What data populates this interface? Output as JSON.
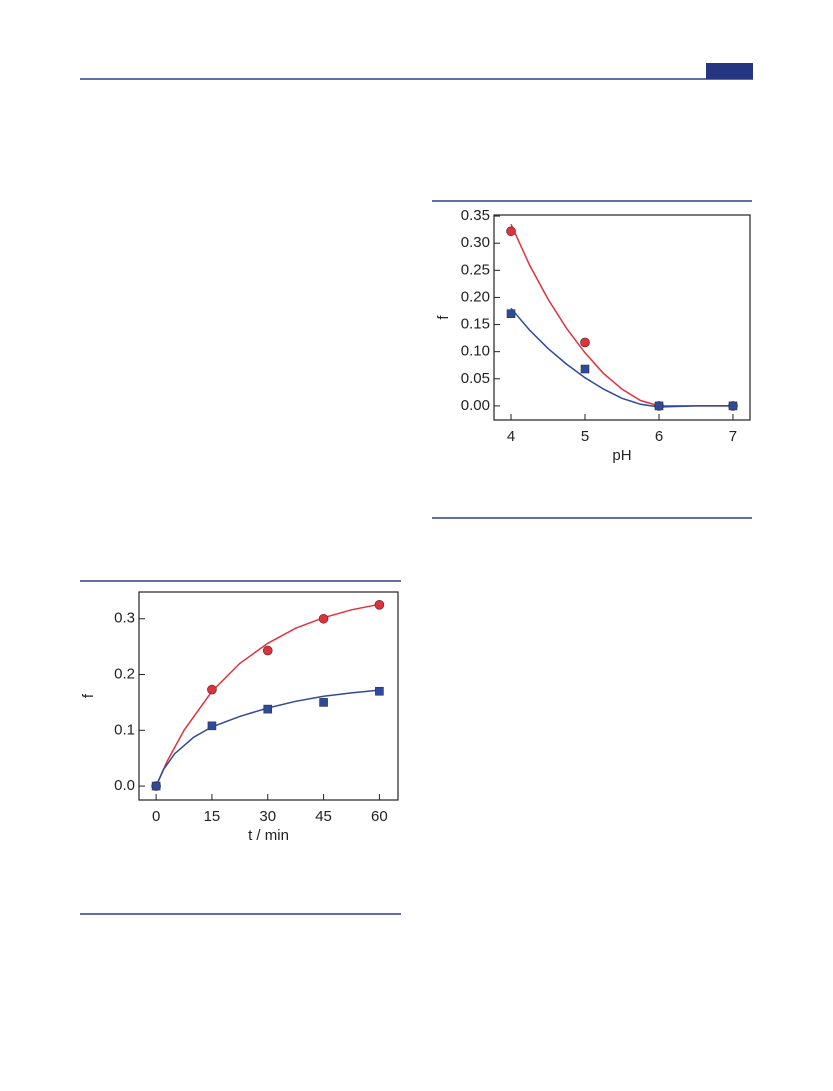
{
  "chart_data": [
    {
      "type": "scatter",
      "xlabel": "pH",
      "ylabel": "f",
      "x": [
        4,
        5,
        6,
        7
      ],
      "xlim": [
        3.77,
        7.23
      ],
      "ylim": [
        -0.026,
        0.352
      ],
      "xticks": [
        4,
        5,
        6,
        7
      ],
      "yticks": [
        {
          "value": 0,
          "label": "0.00"
        },
        {
          "value": 0.05,
          "label": "0.05"
        },
        {
          "value": 0.1,
          "label": "0.10"
        },
        {
          "value": 0.15,
          "label": "0.15"
        },
        {
          "value": 0.2,
          "label": "0.20"
        },
        {
          "value": 0.25,
          "label": "0.25"
        },
        {
          "value": 0.3,
          "label": "0.30"
        },
        {
          "value": 0.35,
          "label": "0.35"
        }
      ],
      "series": [
        {
          "color": "#e3313b",
          "marker": "circle",
          "values": [
            0.322,
            0.117,
            0,
            0
          ],
          "fit": {
            "x": [
              4,
              4.25,
              4.5,
              4.75,
              5,
              5.25,
              5.5,
              5.75,
              6,
              6.5,
              7
            ],
            "values": [
              0.335,
              0.26,
              0.197,
              0.143,
              0.098,
              0.06,
              0.031,
              0.01,
              0,
              0,
              0
            ]
          }
        },
        {
          "color": "#2e4a9b",
          "marker": "square",
          "values": [
            0.17,
            0.068,
            0,
            0
          ],
          "fit": {
            "x": [
              4,
              4.25,
              4.5,
              4.75,
              5,
              5.25,
              5.5,
              5.75,
              6,
              6.5,
              7
            ],
            "values": [
              0.18,
              0.14,
              0.106,
              0.077,
              0.052,
              0.031,
              0.014,
              0.003,
              -0.002,
              0,
              0
            ]
          }
        }
      ]
    },
    {
      "type": "scatter",
      "xlabel": "t / min",
      "ylabel": "f",
      "x": [
        0,
        15,
        30,
        45,
        60
      ],
      "xlim": [
        -4.6,
        65
      ],
      "ylim": [
        -0.025,
        0.348
      ],
      "xticks": [
        0,
        15,
        30,
        45,
        60
      ],
      "yticks": [
        {
          "value": 0,
          "label": "0.0"
        },
        {
          "value": 0.1,
          "label": "0.1"
        },
        {
          "value": 0.2,
          "label": "0.2"
        },
        {
          "value": 0.3,
          "label": "0.3"
        }
      ],
      "series": [
        {
          "color": "#e3313b",
          "marker": "circle",
          "values": [
            0,
            0.173,
            0.243,
            0.3,
            0.325
          ],
          "fit": {
            "x": [
              0,
              3,
              7.5,
              15,
              22.5,
              30,
              37.5,
              45,
              52.5,
              60
            ],
            "values": [
              0,
              0.045,
              0.1,
              0.17,
              0.22,
              0.256,
              0.283,
              0.302,
              0.316,
              0.326
            ]
          }
        },
        {
          "color": "#2e4a9b",
          "marker": "square",
          "values": [
            0,
            0.108,
            0.138,
            0.15,
            0.17
          ],
          "fit": {
            "x": [
              0,
              2,
              5,
              10,
              15,
              22.5,
              30,
              37.5,
              45,
              52.5,
              60
            ],
            "values": [
              0,
              0.03,
              0.058,
              0.087,
              0.106,
              0.125,
              0.14,
              0.152,
              0.161,
              0.167,
              0.172
            ]
          }
        }
      ]
    }
  ]
}
